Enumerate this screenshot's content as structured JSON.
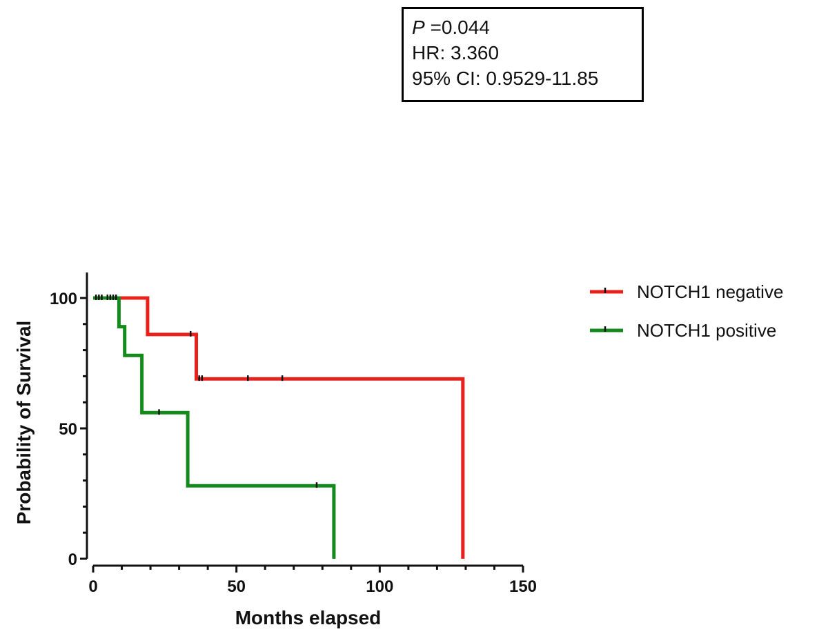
{
  "stats": {
    "p_symbol": "P",
    "p_value": " =0.044",
    "hr": "HR: 3.360",
    "ci": "95% CI: 0.9529-11.85"
  },
  "chart_data": {
    "type": "line",
    "step": true,
    "xlabel": "Months elapsed",
    "ylabel": "Probability of Survival",
    "xlim": [
      0,
      150
    ],
    "ylim": [
      0,
      100
    ],
    "x_ticks": [
      0,
      50,
      100,
      150
    ],
    "y_ticks": [
      0,
      50,
      100
    ],
    "grid": false,
    "legend_position": "top-right",
    "series": [
      {
        "name": "NOTCH1 negative",
        "color": "#e8211c",
        "steps": [
          [
            0,
            100
          ],
          [
            19,
            100
          ],
          [
            19,
            86
          ],
          [
            36,
            86
          ],
          [
            36,
            69
          ],
          [
            129,
            69
          ],
          [
            129,
            0
          ]
        ],
        "censored": [
          [
            34,
            86
          ],
          [
            37,
            69
          ],
          [
            38,
            69
          ],
          [
            54,
            69
          ],
          [
            66,
            69
          ]
        ]
      },
      {
        "name": "NOTCH1 positive",
        "color": "#158a1c",
        "steps": [
          [
            0,
            100
          ],
          [
            9,
            100
          ],
          [
            9,
            89
          ],
          [
            11,
            89
          ],
          [
            11,
            78
          ],
          [
            17,
            78
          ],
          [
            17,
            56
          ],
          [
            33,
            56
          ],
          [
            33,
            28
          ],
          [
            84,
            28
          ],
          [
            84,
            0
          ]
        ],
        "censored": [
          [
            1,
            100
          ],
          [
            2,
            100
          ],
          [
            3,
            100
          ],
          [
            5,
            100
          ],
          [
            6,
            100
          ],
          [
            7,
            100
          ],
          [
            8,
            100
          ],
          [
            23,
            56
          ],
          [
            78,
            28
          ]
        ]
      }
    ]
  }
}
